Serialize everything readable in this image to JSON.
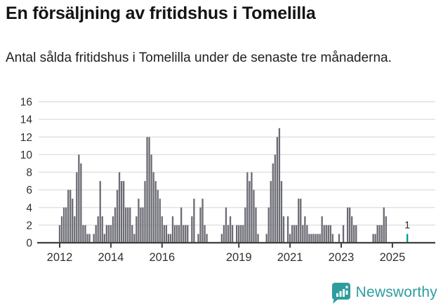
{
  "header": {
    "title": "En försäljning av fritidshus i Tomelilla",
    "subtitle": "Antal sålda fritidshus i Tomelilla under de senaste tre månaderna."
  },
  "footer": {
    "brand": "Newsworthy"
  },
  "colors": {
    "bar": "#6b6b74",
    "highlight": "#009999",
    "brand": "#2d9d9d",
    "grid": "#e2e2e2",
    "axis": "#3f3f3f",
    "tick_text": "#303030",
    "value_label": "#303030"
  },
  "chart_data": {
    "type": "bar",
    "title": "En försäljning av fritidshus i Tomelilla",
    "subtitle": "Antal sålda fritidshus i Tomelilla under de senaste tre månaderna.",
    "xlabel": "",
    "ylabel": "",
    "ylim": [
      0,
      16
    ],
    "y_ticks": [
      0,
      2,
      4,
      6,
      8,
      10,
      12,
      14,
      16
    ],
    "grid": true,
    "legend": false,
    "x_start_month": "2012-01",
    "x_tick_labels": [
      "2012",
      "2014",
      "2016",
      "2019",
      "2021",
      "2023",
      "2025"
    ],
    "x_tick_month_indices": [
      0,
      24,
      48,
      84,
      108,
      132,
      156
    ],
    "values": [
      2,
      3,
      4,
      4,
      6,
      6,
      5,
      3,
      8,
      10,
      9,
      2,
      2,
      1,
      1,
      0,
      1,
      2,
      3,
      7,
      3,
      1,
      2,
      2,
      2,
      3,
      4,
      6,
      8,
      7,
      7,
      4,
      4,
      4,
      2,
      1,
      3,
      5,
      4,
      4,
      7,
      12,
      12,
      10,
      8,
      7,
      6,
      5,
      3,
      2,
      2,
      1,
      1,
      3,
      2,
      2,
      2,
      4,
      2,
      2,
      2,
      0,
      3,
      5,
      0,
      1,
      4,
      5,
      2,
      1,
      0,
      0,
      0,
      0,
      0,
      0,
      1,
      2,
      4,
      2,
      3,
      2,
      0,
      2,
      2,
      2,
      2,
      4,
      8,
      7,
      8,
      6,
      4,
      1,
      0,
      0,
      0,
      1,
      4,
      7,
      9,
      10,
      12,
      13,
      7,
      3,
      0,
      3,
      1,
      2,
      2,
      2,
      5,
      5,
      2,
      3,
      2,
      1,
      1,
      1,
      1,
      1,
      1,
      3,
      2,
      2,
      2,
      2,
      1,
      0,
      0,
      1,
      0,
      2,
      0,
      4,
      4,
      3,
      2,
      2,
      0,
      0,
      0,
      0,
      0,
      0,
      0,
      1,
      1,
      2,
      2,
      2,
      4,
      3,
      0,
      0,
      0,
      0,
      0,
      0,
      0,
      0,
      0,
      1
    ],
    "highlight_last_bar": true,
    "last_value_label": "1"
  }
}
